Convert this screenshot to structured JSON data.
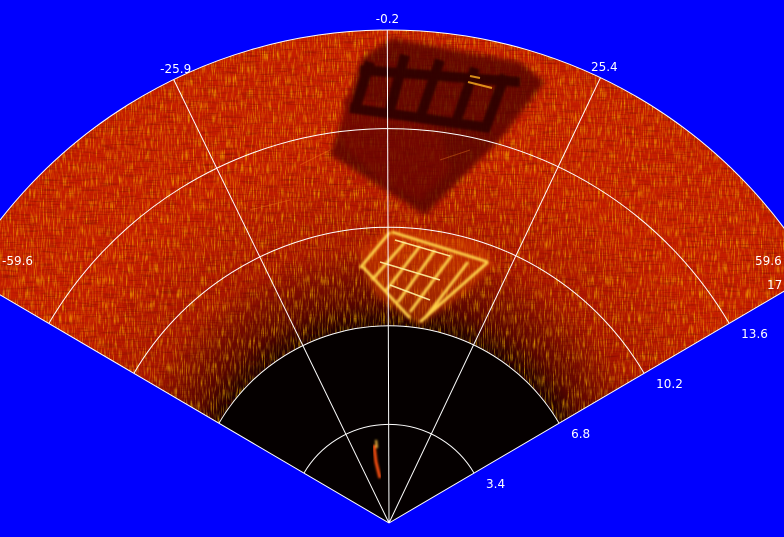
{
  "colors": {
    "background": "#0000ff",
    "grid": "#ffffff",
    "labels": "#ffffff",
    "colormap": "hot",
    "near_field": "#050000"
  },
  "sonar": {
    "bearing_labels": [
      "-59.6",
      "-25.9",
      "-0.2",
      "25.4",
      "59.6"
    ],
    "bearings_deg": [
      -59.6,
      -25.9,
      -0.2,
      25.4,
      59.6
    ],
    "range_labels": [
      "3.4",
      "6.8",
      "10.2",
      "13.6",
      "17"
    ],
    "ranges": [
      3.4,
      6.8,
      10.2,
      13.6,
      17
    ],
    "max_range": 17,
    "min_bearing": -59.6,
    "max_bearing": 59.6
  }
}
